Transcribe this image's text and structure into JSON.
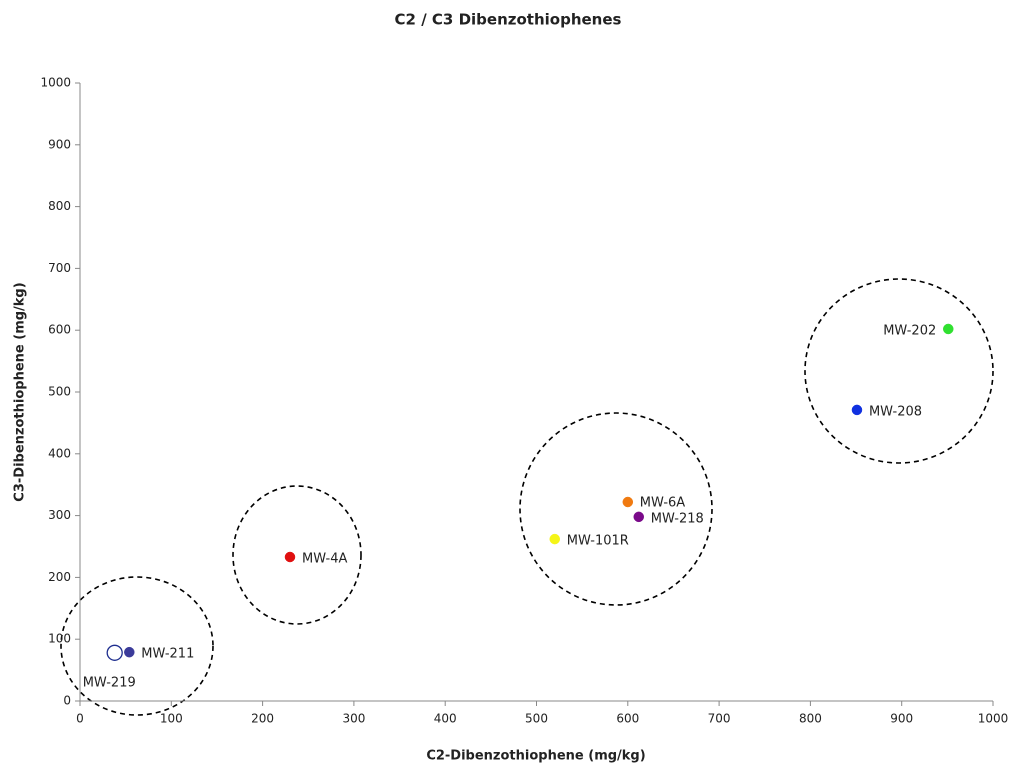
{
  "chart_data": {
    "type": "scatter",
    "title": "C2 / C3 Dibenzothiophenes",
    "x_label": "C2-Dibenzothiophene (mg/kg)",
    "y_label": "C3-Dibenzothiophene (mg/kg)",
    "xlim": [
      0,
      1000
    ],
    "ylim": [
      0,
      1000
    ],
    "xticks": [
      0,
      100,
      200,
      300,
      400,
      500,
      600,
      700,
      800,
      900,
      1000
    ],
    "yticks": [
      0,
      100,
      200,
      300,
      400,
      500,
      600,
      700,
      800,
      900,
      1000
    ],
    "grid": false,
    "series": [
      {
        "name": "MW-219",
        "color": "#1f2f8f",
        "hollow": true,
        "x": [
          38
        ],
        "values": [
          78
        ]
      },
      {
        "name": "MW-211",
        "color": "#3b3b9a",
        "x": [
          54
        ],
        "values": [
          79
        ]
      },
      {
        "name": "MW-4A",
        "color": "#e01010",
        "x": [
          230
        ],
        "values": [
          233
        ]
      },
      {
        "name": "MW-101R",
        "color": "#f5f518",
        "x": [
          520
        ],
        "values": [
          262
        ]
      },
      {
        "name": "MW-6A",
        "color": "#f07a10",
        "x": [
          600
        ],
        "values": [
          322
        ]
      },
      {
        "name": "MW-218",
        "color": "#7a0a8a",
        "x": [
          612
        ],
        "values": [
          298
        ]
      },
      {
        "name": "MW-208",
        "color": "#1030e0",
        "x": [
          851
        ],
        "values": [
          471
        ]
      },
      {
        "name": "MW-202",
        "color": "#30e030",
        "x": [
          951
        ],
        "values": [
          602
        ]
      }
    ]
  }
}
